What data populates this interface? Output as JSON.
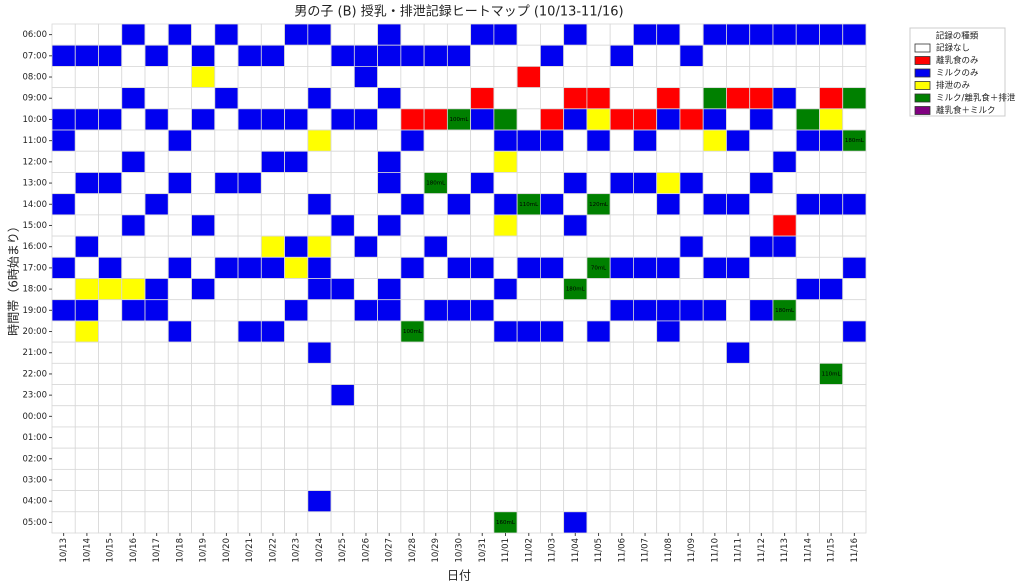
{
  "chart_data": {
    "type": "heatmap",
    "title": "男の子 (B) 授乳・排泄記録ヒートマップ (10/13-11/16)",
    "xlabel": "日付",
    "ylabel": "時間帯（6時始まり）",
    "legend_title": "記録の種類",
    "legend": "outside upper right",
    "grid": true,
    "x": [
      "10/13",
      "10/14",
      "10/15",
      "10/16",
      "10/17",
      "10/18",
      "10/19",
      "10/20",
      "10/21",
      "10/22",
      "10/23",
      "10/24",
      "10/25",
      "10/26",
      "10/27",
      "10/28",
      "10/29",
      "10/30",
      "10/31",
      "11/01",
      "11/02",
      "11/03",
      "11/04",
      "11/05",
      "11/06",
      "11/07",
      "11/08",
      "11/09",
      "11/10",
      "11/11",
      "11/12",
      "11/13",
      "11/14",
      "11/15",
      "11/16"
    ],
    "y": [
      "06:00",
      "07:00",
      "08:00",
      "09:00",
      "10:00",
      "11:00",
      "12:00",
      "13:00",
      "14:00",
      "15:00",
      "16:00",
      "17:00",
      "18:00",
      "19:00",
      "20:00",
      "21:00",
      "22:00",
      "23:00",
      "00:00",
      "01:00",
      "02:00",
      "03:00",
      "04:00",
      "05:00"
    ],
    "categories": [
      {
        "name": "記録なし",
        "color": "#ffffff"
      },
      {
        "name": "離乳食のみ",
        "color": "#ff0000"
      },
      {
        "name": "ミルクのみ",
        "color": "#0000f0"
      },
      {
        "name": "排泄のみ",
        "color": "#ffff00"
      },
      {
        "name": "ミルク/離乳食＋排泄",
        "color": "#008000"
      },
      {
        "name": "離乳食＋ミルク",
        "color": "#800080"
      }
    ],
    "values": [
      [
        0,
        0,
        0,
        2,
        0,
        2,
        0,
        2,
        0,
        0,
        2,
        2,
        0,
        0,
        2,
        0,
        0,
        0,
        2,
        2,
        0,
        0,
        2,
        0,
        0,
        2,
        2,
        0,
        2,
        2,
        2,
        2,
        2,
        2,
        2
      ],
      [
        2,
        2,
        2,
        0,
        2,
        0,
        2,
        0,
        2,
        2,
        0,
        0,
        2,
        2,
        2,
        2,
        2,
        2,
        0,
        0,
        0,
        2,
        0,
        0,
        2,
        0,
        0,
        2,
        0,
        0,
        0,
        0,
        0,
        0,
        0
      ],
      [
        0,
        0,
        0,
        0,
        0,
        0,
        3,
        0,
        0,
        0,
        0,
        0,
        0,
        2,
        0,
        0,
        0,
        0,
        0,
        0,
        1,
        0,
        0,
        0,
        0,
        0,
        0,
        0,
        0,
        0,
        0,
        0,
        0,
        0,
        0
      ],
      [
        0,
        0,
        0,
        2,
        0,
        0,
        0,
        2,
        0,
        0,
        0,
        2,
        0,
        0,
        2,
        0,
        0,
        0,
        1,
        0,
        0,
        0,
        1,
        1,
        0,
        0,
        1,
        0,
        4,
        1,
        1,
        2,
        0,
        1,
        4
      ],
      [
        2,
        2,
        2,
        0,
        2,
        0,
        2,
        0,
        2,
        2,
        2,
        0,
        2,
        2,
        0,
        1,
        1,
        4,
        2,
        4,
        0,
        1,
        2,
        3,
        1,
        1,
        2,
        1,
        2,
        0,
        2,
        0,
        4,
        3,
        0
      ],
      [
        2,
        0,
        0,
        0,
        0,
        2,
        0,
        0,
        0,
        0,
        0,
        3,
        0,
        0,
        0,
        2,
        0,
        0,
        0,
        2,
        2,
        2,
        0,
        2,
        0,
        2,
        0,
        0,
        3,
        2,
        0,
        0,
        2,
        2,
        4
      ],
      [
        0,
        0,
        0,
        2,
        0,
        0,
        0,
        0,
        0,
        2,
        2,
        0,
        0,
        0,
        2,
        0,
        0,
        0,
        0,
        3,
        0,
        0,
        0,
        0,
        0,
        0,
        0,
        0,
        0,
        0,
        0,
        2,
        0,
        0,
        0
      ],
      [
        0,
        2,
        2,
        0,
        0,
        2,
        0,
        2,
        2,
        0,
        0,
        0,
        0,
        0,
        2,
        0,
        4,
        0,
        2,
        0,
        0,
        0,
        2,
        0,
        2,
        2,
        3,
        2,
        0,
        0,
        2,
        0,
        0,
        0,
        0
      ],
      [
        2,
        0,
        0,
        0,
        2,
        0,
        0,
        0,
        0,
        0,
        0,
        2,
        0,
        0,
        0,
        2,
        0,
        2,
        0,
        2,
        4,
        2,
        0,
        4,
        0,
        0,
        2,
        0,
        2,
        2,
        0,
        0,
        2,
        2,
        2
      ],
      [
        0,
        0,
        0,
        2,
        0,
        0,
        2,
        0,
        0,
        0,
        0,
        0,
        2,
        0,
        2,
        0,
        0,
        0,
        0,
        3,
        0,
        0,
        2,
        0,
        0,
        0,
        0,
        0,
        0,
        0,
        0,
        1,
        0,
        0,
        0
      ],
      [
        0,
        2,
        0,
        0,
        0,
        0,
        0,
        0,
        0,
        3,
        2,
        3,
        0,
        2,
        0,
        0,
        2,
        0,
        0,
        0,
        0,
        0,
        0,
        0,
        0,
        0,
        0,
        2,
        0,
        0,
        2,
        2,
        0,
        0,
        0
      ],
      [
        2,
        0,
        2,
        0,
        0,
        2,
        0,
        2,
        2,
        2,
        3,
        2,
        0,
        0,
        0,
        2,
        0,
        2,
        2,
        0,
        2,
        2,
        0,
        4,
        2,
        2,
        2,
        0,
        2,
        2,
        0,
        0,
        0,
        0,
        2
      ],
      [
        0,
        3,
        3,
        3,
        2,
        0,
        2,
        0,
        0,
        0,
        0,
        2,
        2,
        0,
        2,
        0,
        0,
        0,
        0,
        2,
        0,
        0,
        4,
        0,
        0,
        0,
        0,
        0,
        0,
        0,
        0,
        0,
        2,
        2,
        0
      ],
      [
        2,
        2,
        0,
        2,
        2,
        0,
        0,
        0,
        0,
        0,
        2,
        0,
        0,
        2,
        2,
        0,
        2,
        2,
        2,
        0,
        0,
        0,
        0,
        0,
        2,
        2,
        2,
        2,
        2,
        0,
        2,
        4,
        0,
        0,
        0
      ],
      [
        0,
        3,
        0,
        0,
        0,
        2,
        0,
        0,
        2,
        2,
        0,
        0,
        0,
        0,
        0,
        4,
        0,
        0,
        0,
        2,
        2,
        2,
        0,
        2,
        0,
        0,
        2,
        0,
        0,
        0,
        0,
        0,
        0,
        0,
        2
      ],
      [
        0,
        0,
        0,
        0,
        0,
        0,
        0,
        0,
        0,
        0,
        0,
        2,
        0,
        0,
        0,
        0,
        0,
        0,
        0,
        0,
        0,
        0,
        0,
        0,
        0,
        0,
        0,
        0,
        0,
        2,
        0,
        0,
        0,
        0,
        0
      ],
      [
        0,
        0,
        0,
        0,
        0,
        0,
        0,
        0,
        0,
        0,
        0,
        0,
        0,
        0,
        0,
        0,
        0,
        0,
        0,
        0,
        0,
        0,
        0,
        0,
        0,
        0,
        0,
        0,
        0,
        0,
        0,
        0,
        0,
        4,
        0
      ],
      [
        0,
        0,
        0,
        0,
        0,
        0,
        0,
        0,
        0,
        0,
        0,
        0,
        2,
        0,
        0,
        0,
        0,
        0,
        0,
        0,
        0,
        0,
        0,
        0,
        0,
        0,
        0,
        0,
        0,
        0,
        0,
        0,
        0,
        0,
        0
      ],
      [
        0,
        0,
        0,
        0,
        0,
        0,
        0,
        0,
        0,
        0,
        0,
        0,
        0,
        0,
        0,
        0,
        0,
        0,
        0,
        0,
        0,
        0,
        0,
        0,
        0,
        0,
        0,
        0,
        0,
        0,
        0,
        0,
        0,
        0,
        0
      ],
      [
        0,
        0,
        0,
        0,
        0,
        0,
        0,
        0,
        0,
        0,
        0,
        0,
        0,
        0,
        0,
        0,
        0,
        0,
        0,
        0,
        0,
        0,
        0,
        0,
        0,
        0,
        0,
        0,
        0,
        0,
        0,
        0,
        0,
        0,
        0
      ],
      [
        0,
        0,
        0,
        0,
        0,
        0,
        0,
        0,
        0,
        0,
        0,
        0,
        0,
        0,
        0,
        0,
        0,
        0,
        0,
        0,
        0,
        0,
        0,
        0,
        0,
        0,
        0,
        0,
        0,
        0,
        0,
        0,
        0,
        0,
        0
      ],
      [
        0,
        0,
        0,
        0,
        0,
        0,
        0,
        0,
        0,
        0,
        0,
        0,
        0,
        0,
        0,
        0,
        0,
        0,
        0,
        0,
        0,
        0,
        0,
        0,
        0,
        0,
        0,
        0,
        0,
        0,
        0,
        0,
        0,
        0,
        0
      ],
      [
        0,
        0,
        0,
        0,
        0,
        0,
        0,
        0,
        0,
        0,
        0,
        2,
        0,
        0,
        0,
        0,
        0,
        0,
        0,
        0,
        0,
        0,
        0,
        0,
        0,
        0,
        0,
        0,
        0,
        0,
        0,
        0,
        0,
        0,
        0
      ],
      [
        0,
        0,
        0,
        0,
        0,
        0,
        0,
        0,
        0,
        0,
        0,
        0,
        0,
        0,
        0,
        0,
        0,
        0,
        0,
        4,
        0,
        0,
        2,
        0,
        0,
        0,
        0,
        0,
        0,
        0,
        0,
        0,
        0,
        0,
        0
      ]
    ],
    "annotations": [
      {
        "x": "10/30",
        "y": "10:00",
        "text": "100mL"
      },
      {
        "x": "11/16",
        "y": "11:00",
        "text": "180mL"
      },
      {
        "x": "10/29",
        "y": "13:00",
        "text": "180mL"
      },
      {
        "x": "11/02",
        "y": "14:00",
        "text": "110mL"
      },
      {
        "x": "11/05",
        "y": "14:00",
        "text": "120mL"
      },
      {
        "x": "11/05",
        "y": "17:00",
        "text": "70mL"
      },
      {
        "x": "11/04",
        "y": "18:00",
        "text": "180mL"
      },
      {
        "x": "11/13",
        "y": "19:00",
        "text": "180mL"
      },
      {
        "x": "10/28",
        "y": "20:00",
        "text": "100mL"
      },
      {
        "x": "11/15",
        "y": "22:00",
        "text": "110mL"
      },
      {
        "x": "11/01",
        "y": "05:00",
        "text": "160mL"
      }
    ]
  }
}
